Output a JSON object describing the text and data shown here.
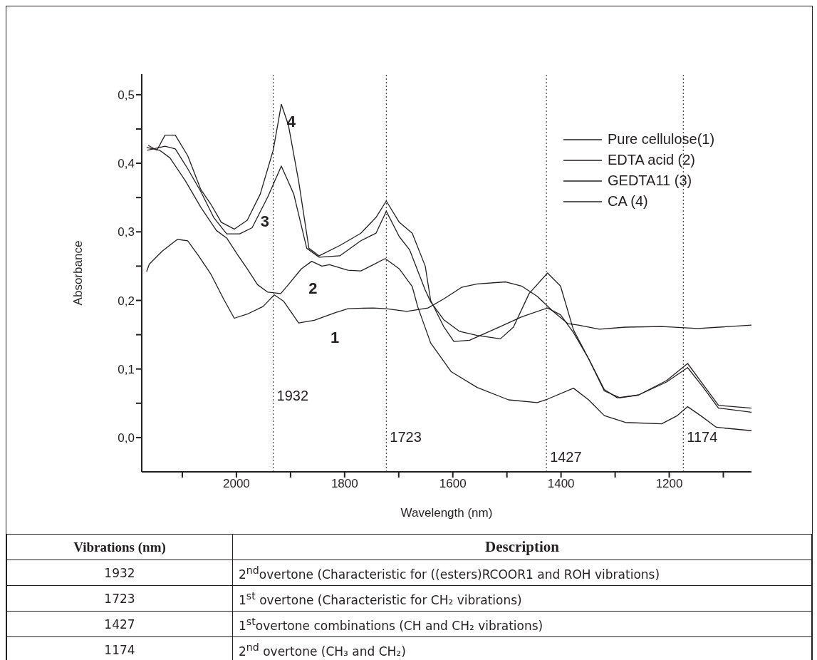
{
  "chart_data": {
    "type": "line",
    "xlabel": "Wavelength (nm)",
    "ylabel": "Absorbance",
    "xlim": [
      2175,
      1048
    ],
    "ylim": [
      -0.05,
      0.53
    ],
    "xticks": [
      {
        "value": 2100,
        "label": null
      },
      2000,
      {
        "value": 1900,
        "label": null
      },
      1800,
      {
        "value": 1700,
        "label": null
      },
      1600,
      {
        "value": 1500,
        "label": null
      },
      1400,
      {
        "value": 1300,
        "label": null
      },
      1200,
      {
        "value": 1100,
        "label": null
      }
    ],
    "yticks": [
      {
        "value": 0,
        "label": "0,0"
      },
      {
        "value": 0.05,
        "label": null
      },
      {
        "value": 0.1,
        "label": "0,1"
      },
      {
        "value": 0.15,
        "label": null
      },
      {
        "value": 0.2,
        "label": "0,2"
      },
      {
        "value": 0.25,
        "label": null
      },
      {
        "value": 0.3,
        "label": "0,3"
      },
      {
        "value": 0.35,
        "label": null
      },
      {
        "value": 0.4,
        "label": "0,4"
      },
      {
        "value": 0.45,
        "label": null
      },
      {
        "value": 0.5,
        "label": "0,5"
      }
    ],
    "legend": "top right",
    "grid": false,
    "series": [
      {
        "name": "Pure cellulose(1)",
        "color": "#231f20",
        "x": [
          2166,
          2161,
          2137,
          2109,
          2090,
          2070,
          2047,
          2023,
          2004,
          1980,
          1951,
          1930,
          1913,
          1885,
          1856,
          1818,
          1794,
          1747,
          1723,
          1685,
          1646,
          1617,
          1584,
          1555,
          1502,
          1473,
          1444,
          1416,
          1387,
          1368,
          1329,
          1281,
          1214,
          1147,
          1048
        ],
        "values": [
          0.242,
          0.253,
          0.272,
          0.289,
          0.287,
          0.265,
          0.238,
          0.201,
          0.174,
          0.18,
          0.191,
          0.208,
          0.199,
          0.167,
          0.171,
          0.182,
          0.188,
          0.189,
          0.188,
          0.184,
          0.189,
          0.202,
          0.219,
          0.224,
          0.227,
          0.221,
          0.206,
          0.185,
          0.166,
          0.164,
          0.158,
          0.161,
          0.162,
          0.159,
          0.164
        ]
      },
      {
        "name": "EDTA acid (2)",
        "color": "#231f20",
        "x": [
          2166,
          2142,
          2123,
          2094,
          2066,
          2037,
          2018,
          1999,
          1980,
          1961,
          1942,
          1918,
          1904,
          1880,
          1861,
          1842,
          1828,
          1794,
          1770,
          1747,
          1725,
          1699,
          1675,
          1665,
          1641,
          1603,
          1555,
          1497,
          1444,
          1425,
          1377,
          1349,
          1320,
          1281,
          1214,
          1185,
          1166,
          1142,
          1113,
          1048
        ],
        "values": [
          0.423,
          0.419,
          0.408,
          0.374,
          0.336,
          0.302,
          0.291,
          0.268,
          0.246,
          0.223,
          0.212,
          0.21,
          0.223,
          0.246,
          0.257,
          0.25,
          0.252,
          0.244,
          0.243,
          0.252,
          0.261,
          0.246,
          0.22,
          0.191,
          0.138,
          0.096,
          0.073,
          0.055,
          0.051,
          0.056,
          0.072,
          0.055,
          0.032,
          0.022,
          0.02,
          0.032,
          0.045,
          0.032,
          0.015,
          0.01
        ]
      },
      {
        "name": "GEDTA11 (3)",
        "color": "#231f20",
        "x": [
          2165,
          2132,
          2113,
          2090,
          2066,
          2042,
          2018,
          1994,
          1971,
          1942,
          1917,
          1894,
          1870,
          1847,
          1809,
          1770,
          1742,
          1723,
          1699,
          1680,
          1651,
          1641,
          1617,
          1588,
          1555,
          1512,
          1488,
          1459,
          1425,
          1401,
          1377,
          1349,
          1320,
          1291,
          1257,
          1205,
          1166,
          1137,
          1109,
          1048
        ],
        "values": [
          0.419,
          0.425,
          0.421,
          0.392,
          0.359,
          0.321,
          0.297,
          0.297,
          0.306,
          0.351,
          0.396,
          0.355,
          0.276,
          0.263,
          0.265,
          0.287,
          0.298,
          0.33,
          0.293,
          0.274,
          0.215,
          0.198,
          0.172,
          0.155,
          0.149,
          0.144,
          0.161,
          0.21,
          0.24,
          0.221,
          0.157,
          0.115,
          0.068,
          0.058,
          0.062,
          0.081,
          0.102,
          0.073,
          0.043,
          0.037
        ]
      },
      {
        "name": "CA (4)",
        "color": "#231f20",
        "x": [
          2163,
          2147,
          2132,
          2113,
          2090,
          2066,
          2047,
          2028,
          2004,
          1980,
          1956,
          1932,
          1917,
          1904,
          1885,
          1866,
          1847,
          1809,
          1770,
          1742,
          1723,
          1699,
          1675,
          1651,
          1641,
          1617,
          1598,
          1569,
          1512,
          1473,
          1425,
          1401,
          1377,
          1349,
          1320,
          1296,
          1257,
          1205,
          1166,
          1137,
          1109,
          1048
        ],
        "values": [
          0.426,
          0.419,
          0.441,
          0.441,
          0.411,
          0.362,
          0.34,
          0.314,
          0.304,
          0.317,
          0.355,
          0.419,
          0.486,
          0.456,
          0.374,
          0.276,
          0.265,
          0.28,
          0.298,
          0.321,
          0.345,
          0.314,
          0.298,
          0.25,
          0.2,
          0.162,
          0.14,
          0.142,
          0.162,
          0.176,
          0.189,
          0.179,
          0.153,
          0.115,
          0.07,
          0.058,
          0.062,
          0.083,
          0.108,
          0.077,
          0.047,
          0.043
        ]
      }
    ],
    "ref_lines": [
      {
        "axis": "x",
        "value": 1932,
        "label": "1932",
        "line_style": "dotted"
      },
      {
        "axis": "x",
        "value": 1723,
        "label": "1723",
        "line_style": "dotted"
      },
      {
        "axis": "x",
        "value": 1427,
        "label": "1427",
        "line_style": "dotted"
      },
      {
        "axis": "x",
        "value": 1174,
        "label": "1174",
        "line_style": "dotted"
      }
    ],
    "annotations": [
      {
        "text": "4",
        "x": 1917,
        "y": 0.486
      },
      {
        "text": "3",
        "x": 1942,
        "y": 0.351
      },
      {
        "text": "2",
        "x": 1861,
        "y": 0.257
      },
      {
        "text": "1",
        "x": 1818,
        "y": 0.182
      },
      "Vibrations (nm)",
      "Description",
      "1932",
      "2$^{nd}$overtone (Characteristic for  ((esters)RCOOR1 and ROH vibrations)",
      "1723",
      "1$^{st}$ overtone (Characteristic  for CH₂ vibrations)",
      "1427",
      "1$^{st}$overtone combinations (CH and CH₂ vibrations)",
      "1174",
      "2$^{nd}$ overtone   (CH₃  and CH₂)"
    ]
  }
}
